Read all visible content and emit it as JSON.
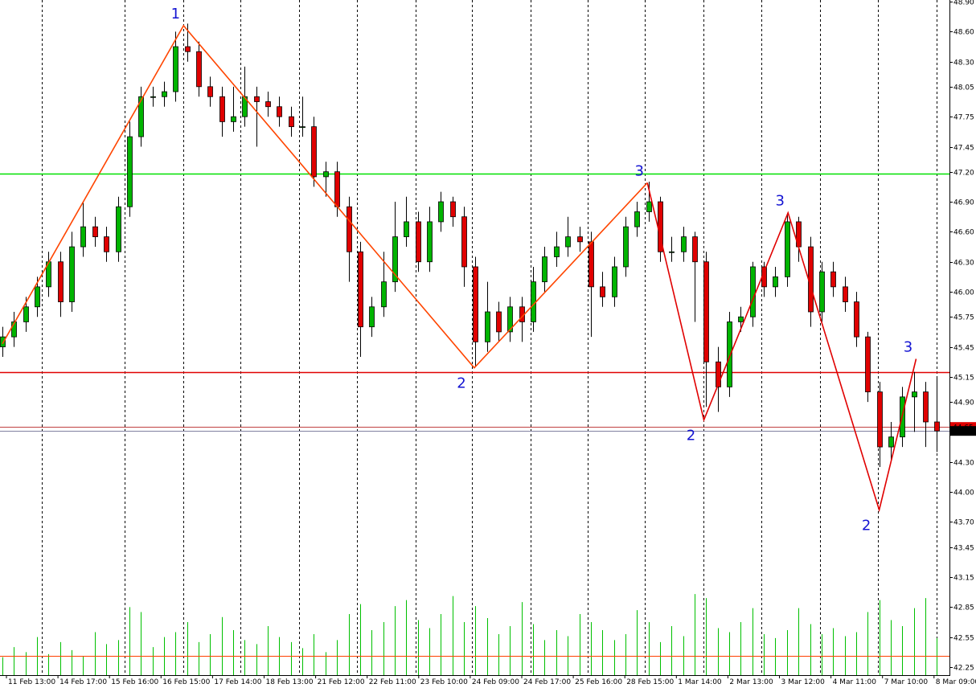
{
  "chart_data": {
    "type": "candlestick",
    "ylim": [
      42.17,
      48.916
    ],
    "yticks": [
      {
        "value": 48.9,
        "label": "48.90"
      },
      {
        "value": 48.6,
        "label": "48.60"
      },
      {
        "value": 48.3,
        "label": "48.30"
      },
      {
        "value": 48.05,
        "label": "48.05"
      },
      {
        "value": 47.75,
        "label": "47.75"
      },
      {
        "value": 47.45,
        "label": "47.45"
      },
      {
        "value": 47.2,
        "label": "47.20"
      },
      {
        "value": 46.9,
        "label": "46.90"
      },
      {
        "value": 46.6,
        "label": "46.60"
      },
      {
        "value": 46.3,
        "label": "46.30"
      },
      {
        "value": 46.0,
        "label": "46.00"
      },
      {
        "value": 45.75,
        "label": "45.75"
      },
      {
        "value": 45.45,
        "label": "45.45"
      },
      {
        "value": 45.15,
        "label": "45.15"
      },
      {
        "value": 44.9,
        "label": "44.90"
      },
      {
        "value": 44.3,
        "label": "44.30"
      },
      {
        "value": 44.0,
        "label": "44.00"
      },
      {
        "value": 43.7,
        "label": "43.70"
      },
      {
        "value": 43.45,
        "label": "43.45"
      },
      {
        "value": 43.15,
        "label": "43.15"
      },
      {
        "value": 42.85,
        "label": "42.85"
      },
      {
        "value": 42.55,
        "label": "42.55"
      },
      {
        "value": 42.25,
        "label": "42.25"
      }
    ],
    "x_labels": [
      "11 Feb 13:00",
      "14 Feb 17:00",
      "15 Feb 16:00",
      "16 Feb 15:00",
      "17 Feb 14:00",
      "18 Feb 13:00",
      "21 Feb 12:00",
      "22 Feb 11:00",
      "23 Feb 10:00",
      "24 Feb 09:00",
      "24 Feb 17:00",
      "25 Feb 16:00",
      "28 Feb 15:00",
      "1 Mar 14:00",
      "2 Mar 13:00",
      "3 Mar 12:00",
      "4 Mar 11:00",
      "7 Mar 10:00",
      "8 Mar 09:00"
    ],
    "separators": [
      3.4,
      10.6,
      15.7,
      20.6,
      25.7,
      30.7,
      35.8,
      40.7,
      45.8,
      50.7,
      55.7,
      60.8,
      65.8,
      70.9,
      75.9,
      81
    ],
    "up_color": "#00b400",
    "down_color": "#e00000",
    "open": [
      45.45,
      45.55,
      45.7,
      45.85,
      46.05,
      46.3,
      45.9,
      46.45,
      46.65,
      46.55,
      46.4,
      46.85,
      47.55,
      47.95,
      47.95,
      48.0,
      48.45,
      48.4,
      48.05,
      47.95,
      47.7,
      47.75,
      47.95,
      47.9,
      47.85,
      47.75,
      47.65,
      47.65,
      47.15,
      47.2,
      46.85,
      46.4,
      45.65,
      45.85,
      46.1,
      46.55,
      46.7,
      46.3,
      46.7,
      46.9,
      46.75,
      46.25,
      45.5,
      45.8,
      45.6,
      45.85,
      45.7,
      46.1,
      46.35,
      46.45,
      46.55,
      46.5,
      46.05,
      45.95,
      46.25,
      46.65,
      46.8,
      46.9,
      46.4,
      46.4,
      46.55,
      46.3,
      45.3,
      45.05,
      45.7,
      45.75,
      46.25,
      46.05,
      46.15,
      46.7,
      46.45,
      45.8,
      46.2,
      46.05,
      45.9,
      45.55,
      45.0,
      44.45,
      44.55,
      44.95,
      45.0,
      44.7
    ],
    "high": [
      45.65,
      45.8,
      45.95,
      46.15,
      46.4,
      46.4,
      46.6,
      46.9,
      46.75,
      46.65,
      46.95,
      47.7,
      48.05,
      48.05,
      48.1,
      48.6,
      48.68,
      48.5,
      48.15,
      48.05,
      48.05,
      48.25,
      48.05,
      48.0,
      47.95,
      47.85,
      47.95,
      47.75,
      47.3,
      47.3,
      46.95,
      46.5,
      45.95,
      46.4,
      46.9,
      46.95,
      46.8,
      46.85,
      47.0,
      46.95,
      46.85,
      46.35,
      46.1,
      45.9,
      45.95,
      45.95,
      46.25,
      46.45,
      46.6,
      46.75,
      46.65,
      46.6,
      46.2,
      46.35,
      46.75,
      46.9,
      47.1,
      46.95,
      46.55,
      46.65,
      46.6,
      46.4,
      45.45,
      45.8,
      45.85,
      46.3,
      46.3,
      46.25,
      46.78,
      46.75,
      46.55,
      46.3,
      46.3,
      46.15,
      46.0,
      45.6,
      45.1,
      44.7,
      45.05,
      45.2,
      45.1,
      45.15
    ],
    "low": [
      45.35,
      45.45,
      45.6,
      45.75,
      45.95,
      45.75,
      45.8,
      46.35,
      46.45,
      46.3,
      46.3,
      46.75,
      47.45,
      47.85,
      47.85,
      47.9,
      48.3,
      47.95,
      47.85,
      47.55,
      47.6,
      47.65,
      47.45,
      47.75,
      47.65,
      47.55,
      47.55,
      47.05,
      46.95,
      46.75,
      46.1,
      45.35,
      45.55,
      45.75,
      46.0,
      46.45,
      46.2,
      46.2,
      46.6,
      46.65,
      46.05,
      45.25,
      45.4,
      45.5,
      45.5,
      45.5,
      45.6,
      46.0,
      46.25,
      46.35,
      46.4,
      45.55,
      45.85,
      45.85,
      46.15,
      46.55,
      46.7,
      46.3,
      46.3,
      46.3,
      45.7,
      44.85,
      44.8,
      44.95,
      45.6,
      45.65,
      45.95,
      45.95,
      46.05,
      46.3,
      45.65,
      45.7,
      45.95,
      45.8,
      45.45,
      44.9,
      44.25,
      44.3,
      44.45,
      44.6,
      44.45,
      44.4
    ],
    "close": [
      45.55,
      45.7,
      45.85,
      46.05,
      46.3,
      45.9,
      46.45,
      46.65,
      46.55,
      46.4,
      46.85,
      47.55,
      47.95,
      47.95,
      48.0,
      48.45,
      48.4,
      48.05,
      47.95,
      47.7,
      47.75,
      47.95,
      47.9,
      47.85,
      47.75,
      47.65,
      47.65,
      47.15,
      47.2,
      46.85,
      46.4,
      45.65,
      45.85,
      46.1,
      46.55,
      46.7,
      46.3,
      46.7,
      46.9,
      46.75,
      46.25,
      45.5,
      45.8,
      45.6,
      45.85,
      45.7,
      46.1,
      46.35,
      46.45,
      46.55,
      46.5,
      46.05,
      45.95,
      46.25,
      46.65,
      46.8,
      46.9,
      46.4,
      46.4,
      46.55,
      46.3,
      45.3,
      45.05,
      45.7,
      45.75,
      46.25,
      46.05,
      46.15,
      46.7,
      46.45,
      45.8,
      46.2,
      46.05,
      45.9,
      45.55,
      45.0,
      44.45,
      44.55,
      44.95,
      45.0,
      44.7,
      44.61
    ],
    "volume_color": "#00c000",
    "volume": [
      42.35,
      42.45,
      42.4,
      42.55,
      42.38,
      42.5,
      42.42,
      42.36,
      42.6,
      42.48,
      42.52,
      42.85,
      42.8,
      42.45,
      42.55,
      42.6,
      42.7,
      42.5,
      42.58,
      42.75,
      42.62,
      42.52,
      42.48,
      42.66,
      42.55,
      42.5,
      42.44,
      42.58,
      42.4,
      42.52,
      42.78,
      42.88,
      42.62,
      42.7,
      42.86,
      42.92,
      42.72,
      42.64,
      42.78,
      42.96,
      42.7,
      42.86,
      42.74,
      42.58,
      42.66,
      42.9,
      42.68,
      42.52,
      42.62,
      42.56,
      42.78,
      42.7,
      42.62,
      42.52,
      42.58,
      42.82,
      42.7,
      42.5,
      42.66,
      42.56,
      42.98,
      42.94,
      42.64,
      42.6,
      42.7,
      42.84,
      42.58,
      42.54,
      42.62,
      42.84,
      42.68,
      42.58,
      42.64,
      42.56,
      42.6,
      42.8,
      42.92,
      42.72,
      42.66,
      42.84,
      42.94,
      42.54
    ],
    "levels": [
      {
        "value": 47.18,
        "color": "#00e000"
      },
      {
        "value": 45.2,
        "color": "#e00000"
      },
      {
        "value": 44.65,
        "color": "#c04040"
      },
      {
        "value": 44.61,
        "color": "#8080a0"
      },
      {
        "value": 42.36,
        "color": "#ff4000"
      }
    ],
    "price_tags": [
      {
        "value": 44.65,
        "label": "44.65",
        "color": "#e00000"
      },
      {
        "value": 44.61,
        "label": "44.61",
        "color": "#000000"
      }
    ],
    "zigzags": [
      {
        "color": "#ff4500",
        "x": [
          0,
          15.7,
          40.9,
          55.9
        ],
        "y": [
          45.48,
          48.66,
          45.24,
          47.09
        ],
        "labels": [
          null,
          "1",
          "2",
          "3"
        ]
      },
      {
        "color": "#e00000",
        "x": [
          55.9,
          60.8,
          68.1,
          76,
          79.2
        ],
        "y": [
          47.09,
          44.72,
          46.79,
          43.82,
          45.33
        ],
        "labels": [
          null,
          "2",
          "3",
          "2",
          "3"
        ]
      }
    ],
    "label_color": "#1414d2"
  }
}
